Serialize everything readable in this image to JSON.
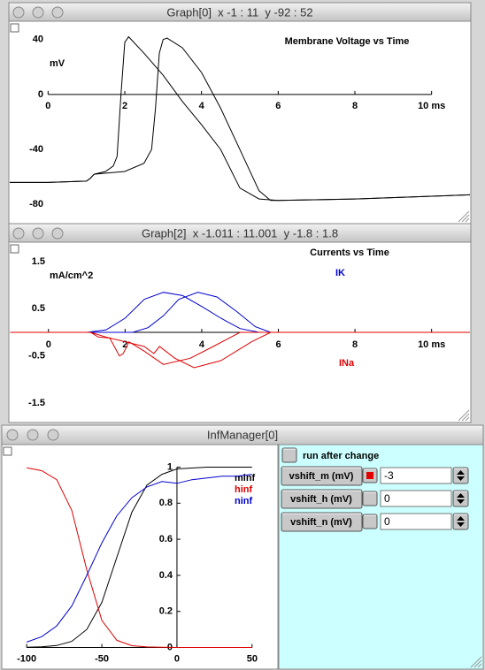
{
  "windows": [
    {
      "title": "Graph[0]  x -1 : 11  y -92 : 52"
    },
    {
      "title": "Graph[2]  x -1.011 : 11.001  y -1.8 : 1.8"
    },
    {
      "title": "InfManager[0]"
    }
  ],
  "panel": {
    "checkbox": "run after change",
    "rows": [
      {
        "label": "vshift_m (mV)",
        "value": -3,
        "changed": true
      },
      {
        "label": "vshift_h (mV)",
        "value": 0,
        "changed": false
      },
      {
        "label": "vshift_n (mV)",
        "value": 0,
        "changed": false
      }
    ]
  },
  "chart_data": [
    {
      "type": "line",
      "title": "Membrane Voltage vs Time",
      "y_label": "mV",
      "xlim": [
        -1,
        11
      ],
      "ylim": [
        -92,
        52
      ],
      "xticks": [
        0,
        2,
        4,
        6,
        8,
        {
          "value": 10,
          "label": "10 ms"
        }
      ],
      "yticks": [
        40,
        0,
        -40,
        -80
      ],
      "axis_lines": [
        "x"
      ],
      "series": [
        {
          "color": "#000000",
          "x": [
            -1,
            0,
            1,
            1.1,
            1.2,
            1.5,
            1.7,
            1.8,
            1.9,
            2.0,
            2.1,
            2.5,
            3,
            3.5,
            4,
            4.5,
            5,
            5.5,
            6,
            8,
            10,
            11
          ],
          "values": [
            -64,
            -64,
            -63,
            -61,
            -58,
            -56,
            -52,
            -45,
            0,
            38,
            42,
            30,
            14,
            -5,
            -22,
            -40,
            -68,
            -76,
            -77,
            -76,
            -74,
            -73
          ]
        },
        {
          "color": "#000000",
          "x": [
            -1,
            0,
            1,
            1.1,
            1.2,
            2,
            2.5,
            2.7,
            2.8,
            2.9,
            3.0,
            3.1,
            3.5,
            4,
            4.5,
            5,
            5.5,
            5.8,
            6,
            8,
            10,
            11
          ],
          "values": [
            -64,
            -64,
            -63,
            -61,
            -58,
            -56,
            -50,
            -40,
            -10,
            30,
            40,
            41,
            34,
            16,
            -10,
            -40,
            -70,
            -77,
            -77,
            -76,
            -74,
            -73
          ]
        }
      ]
    },
    {
      "type": "line",
      "title": "Currents vs Time",
      "y_label": "mA/cm^2",
      "xlim": [
        -1.011,
        11.001
      ],
      "ylim": [
        -1.8,
        1.8
      ],
      "xticks": [
        0,
        2,
        4,
        6,
        8,
        {
          "value": 10,
          "label": "10 ms"
        }
      ],
      "yticks": [
        1.5,
        0.5,
        -0.5,
        -1.5
      ],
      "axis_lines": [
        "x"
      ],
      "series": [
        {
          "name": "IK",
          "color": "#0000cc",
          "x": [
            -1,
            1,
            1.5,
            2,
            2.5,
            3,
            3.5,
            4,
            4.5,
            5,
            5.5,
            11
          ],
          "values": [
            0,
            0,
            0.05,
            0.3,
            0.7,
            0.85,
            0.78,
            0.55,
            0.3,
            0.08,
            0,
            0
          ]
        },
        {
          "color": "#0000cc",
          "x": [
            -1,
            2.2,
            2.6,
            3,
            3.4,
            3.9,
            4.4,
            4.9,
            5.4,
            5.8,
            11
          ],
          "values": [
            0,
            0,
            0.1,
            0.35,
            0.7,
            0.85,
            0.75,
            0.45,
            0.12,
            0,
            0
          ]
        },
        {
          "name": "INa",
          "color": "#dd0000",
          "x": [
            -1,
            1.1,
            1.3,
            1.6,
            1.85,
            1.95,
            2.1,
            2.5,
            3,
            3.7,
            4.3,
            5.0,
            11
          ],
          "values": [
            0,
            0,
            -0.1,
            -0.12,
            -0.5,
            -0.45,
            -0.2,
            -0.4,
            -0.68,
            -0.55,
            -0.3,
            0,
            0
          ]
        },
        {
          "color": "#dd0000",
          "x": [
            -1,
            1.1,
            1.5,
            2.5,
            2.75,
            2.9,
            3.3,
            3.8,
            4.5,
            5.3,
            5.8,
            11
          ],
          "values": [
            0,
            0,
            -0.1,
            -0.3,
            -0.45,
            -0.3,
            -0.55,
            -0.75,
            -0.6,
            -0.2,
            0,
            0
          ]
        }
      ]
    },
    {
      "type": "line",
      "xlim": [
        -116,
        66
      ],
      "ylim": [
        -0.11,
        1.11
      ],
      "xticks": [
        -100,
        -50,
        0,
        50
      ],
      "yticks": [
        0,
        0.2,
        0.4,
        0.6,
        0.8,
        1
      ],
      "axis_lines": [
        "x",
        "y"
      ],
      "x": [
        -100,
        -90,
        -80,
        -70,
        -60,
        -50,
        -40,
        -30,
        -20,
        -10,
        0,
        10,
        20,
        30,
        40,
        50
      ],
      "series": [
        {
          "name": "minf",
          "color": "#000000",
          "values": [
            0.001,
            0.004,
            0.011,
            0.034,
            0.1,
            0.25,
            0.5,
            0.75,
            0.9,
            0.96,
            0.99,
            0.995,
            1,
            1,
            1,
            1
          ]
        },
        {
          "name": "hinf",
          "color": "#dd0000",
          "values": [
            0.996,
            0.98,
            0.93,
            0.76,
            0.43,
            0.15,
            0.04,
            0.01,
            0.003,
            0.001,
            0,
            0,
            0,
            0,
            0,
            0
          ]
        },
        {
          "name": "ninf",
          "color": "#0000cc",
          "values": [
            0.03,
            0.06,
            0.12,
            0.23,
            0.4,
            0.58,
            0.73,
            0.83,
            0.89,
            0.92,
            0.91,
            0.93,
            0.94,
            0.95,
            0.95,
            0.96
          ]
        }
      ]
    }
  ]
}
